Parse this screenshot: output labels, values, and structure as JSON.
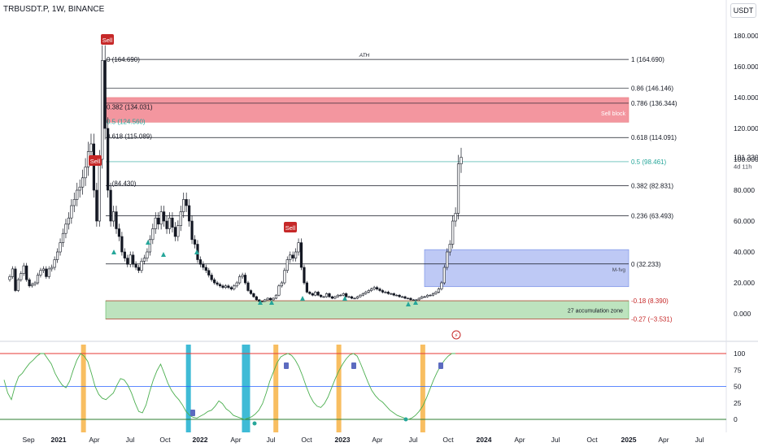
{
  "header": {
    "symbol": "TRBUSDT.P, 1W, BINANCE",
    "currency": "USDT"
  },
  "price_axis": {
    "ticks": [
      "180.000",
      "160.000",
      "140.000",
      "120.000",
      "100.000",
      "80.000",
      "60.000",
      "40.000",
      "20.000",
      "0.000"
    ],
    "last_price": "101.330",
    "countdown": "4d 11h"
  },
  "oscillator_axis": {
    "ticks": [
      "100",
      "75",
      "50",
      "25",
      "0"
    ]
  },
  "time_axis": {
    "ticks": [
      "Sep",
      "2021",
      "Apr",
      "Jul",
      "Oct",
      "2022",
      "Apr",
      "Jul",
      "Oct",
      "2023",
      "Apr",
      "Jul",
      "Oct",
      "2024",
      "Apr",
      "Jul",
      "Oct",
      "2025",
      "Apr",
      "Jul"
    ]
  },
  "fib_levels": [
    {
      "price": 164.69,
      "label": "1 (164.690)",
      "color": "#131722"
    },
    {
      "price": 146.146,
      "label": "0.86 (146.146)",
      "color": "#131722"
    },
    {
      "price": 136.344,
      "label": "0.786 (136.344)",
      "color": "#131722"
    },
    {
      "price": 114.091,
      "label": "0.618 (114.091)",
      "color": "#131722"
    },
    {
      "price": 98.461,
      "label": "0.5 (98.461)",
      "color": "#26a69a"
    },
    {
      "price": 82.831,
      "label": "0.382 (82.831)",
      "color": "#131722"
    },
    {
      "price": 63.493,
      "label": "0.236 (63.493)",
      "color": "#131722"
    },
    {
      "price": 32.233,
      "label": "0 (32.233)",
      "color": "#131722"
    },
    {
      "price": 8.39,
      "label": "-0.18 (8.390)",
      "color": "#c62828"
    },
    {
      "price": -3.531,
      "label": "-0.27 (−3.531)",
      "color": "#c62828"
    }
  ],
  "left_fib_labels": [
    {
      "price": 164.69,
      "label": "0 (164.690)",
      "color": "#131722"
    },
    {
      "price": 134.031,
      "label": "0.382 (134.031)",
      "color": "#131722"
    },
    {
      "price": 124.56,
      "label": "0.5 (124.560)",
      "color": "#26a69a"
    },
    {
      "price": 115.089,
      "label": "0.618 (115.089)",
      "color": "#131722"
    },
    {
      "price": 84.43,
      "label": "1 (84.430)",
      "color": "#131722"
    }
  ],
  "annotations": {
    "ath": "ATH",
    "sell_block": "Sell block",
    "fvg": "M-fvg",
    "accumulation": "27 accumulation zone",
    "sell_badges": [
      "Sell",
      "Sell",
      "Sell"
    ]
  },
  "chart_data": {
    "type": "candlestick",
    "title": "TRBUSDT.P, 1W, BINANCE",
    "price_range": [
      -5,
      185
    ],
    "oscillator_range": [
      0,
      100
    ],
    "zones": [
      {
        "name": "Sell block",
        "from": 124.0,
        "to": 140.0,
        "color": "#f28b95"
      },
      {
        "name": "M-fvg",
        "from": 17.5,
        "to": 41.5,
        "color": "#b8c4f5"
      },
      {
        "name": "27 accumulation zone",
        "from": -3.5,
        "to": 8.4,
        "color": "#b6e0b8"
      }
    ],
    "closes": [
      24,
      29,
      15,
      22,
      26,
      31,
      22,
      18,
      19,
      20,
      25,
      28,
      29,
      24,
      29,
      30,
      35,
      40,
      46,
      52,
      58,
      62,
      70,
      74,
      80,
      82,
      88,
      95,
      105,
      110,
      80,
      60,
      100,
      164,
      120,
      80,
      60,
      66,
      55,
      50,
      40,
      36,
      32,
      38,
      32,
      30,
      28,
      34,
      36,
      40,
      48,
      55,
      62,
      58,
      66,
      60,
      55,
      62,
      56,
      50,
      57,
      66,
      74,
      70,
      60,
      48,
      45,
      35,
      32,
      30,
      28,
      25,
      22,
      20,
      19,
      18,
      17,
      18,
      17,
      16,
      18,
      20,
      24,
      25,
      20,
      15,
      13,
      11,
      9,
      8,
      8,
      9,
      10,
      9,
      10,
      12,
      18,
      20,
      28,
      35,
      38,
      36,
      40,
      46,
      30,
      20,
      14,
      13,
      12,
      14,
      12,
      11,
      11,
      13,
      11,
      10,
      11,
      12,
      12,
      13,
      11,
      11,
      10,
      10,
      11,
      12,
      13,
      14,
      15,
      16,
      17,
      16,
      15,
      14,
      14,
      13,
      13,
      12,
      12,
      11,
      11,
      10,
      10,
      9,
      9,
      9,
      10,
      11,
      11,
      12,
      12,
      13,
      14,
      16,
      20,
      30,
      40,
      45,
      60,
      65,
      97,
      101.33
    ],
    "oscillator": {
      "upper_band": 100,
      "mid_band": 50,
      "lower_band": 0,
      "values": [
        60,
        40,
        30,
        50,
        65,
        70,
        78,
        85,
        90,
        96,
        100,
        100,
        92,
        84,
        70,
        60,
        52,
        48,
        58,
        75,
        90,
        100,
        96,
        88,
        70,
        50,
        38,
        32,
        30,
        35,
        40,
        52,
        62,
        60,
        52,
        40,
        25,
        12,
        10,
        22,
        42,
        60,
        74,
        84,
        70,
        55,
        44,
        36,
        30,
        22,
        12,
        6,
        3,
        2,
        5,
        8,
        12,
        14,
        20,
        28,
        24,
        16,
        12,
        6,
        4,
        2,
        0,
        2,
        4,
        8,
        14,
        24,
        40,
        58,
        72,
        86,
        95,
        98,
        100,
        97,
        90,
        80,
        66,
        50,
        36,
        26,
        20,
        18,
        24,
        34,
        48,
        62,
        74,
        84,
        92,
        98,
        100,
        96,
        84,
        70,
        56,
        44,
        36,
        30,
        26,
        20,
        14,
        10,
        6,
        4,
        2,
        0,
        2,
        6,
        12,
        20,
        32,
        46,
        60,
        72,
        82,
        90,
        96,
        100,
        100
      ],
      "bands": [
        {
          "at": 0.11,
          "color": "#f7b750"
        },
        {
          "at": 0.26,
          "color": "#2ab4d1"
        },
        {
          "at": 0.34,
          "color": "#2ab4d1"
        },
        {
          "at": 0.385,
          "color": "#f7b750"
        },
        {
          "at": 0.475,
          "color": "#f7b750"
        },
        {
          "at": 0.595,
          "color": "#f7b750"
        }
      ]
    }
  },
  "colors": {
    "up": "#ffffff",
    "down": "#131722",
    "oscillator_line": "#4caf50",
    "upper_band": "#e53935",
    "mid_band": "#2962ff",
    "lower_band": "#2e7d32"
  }
}
